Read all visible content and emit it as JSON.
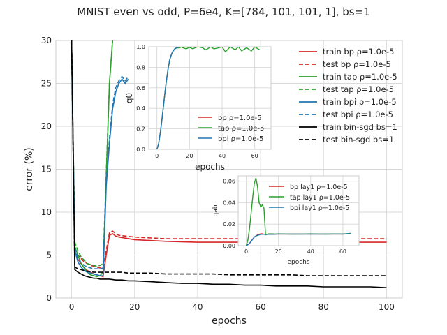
{
  "chart_data": [
    {
      "type": "line",
      "title": "MNIST even vs odd, P=6e4, K=[784, 101, 101, 1], bs=1",
      "xlabel": "epochs",
      "ylabel": "error (%)",
      "xlim": [
        -5,
        105
      ],
      "ylim": [
        0,
        30
      ],
      "xticks": [
        0,
        20,
        40,
        60,
        80,
        100
      ],
      "yticks": [
        0,
        5,
        10,
        15,
        20,
        25,
        30
      ],
      "grid": true,
      "legend_position": "top-right",
      "series": [
        {
          "name": "train bp ρ=1.0e-5",
          "color": "#d62728",
          "dash": false,
          "x": [
            0,
            1,
            2,
            3,
            4,
            5,
            6,
            7,
            8,
            9,
            10,
            11,
            12,
            13,
            14,
            15,
            20,
            30,
            40,
            50,
            60,
            70,
            80,
            90,
            100
          ],
          "y": [
            30,
            5.5,
            4.5,
            4,
            3.5,
            3.2,
            3,
            2.8,
            2.7,
            2.6,
            2.5,
            5,
            7.3,
            7.5,
            7.2,
            7.1,
            6.8,
            6.6,
            6.5,
            6.5,
            6.5,
            6.5,
            6.5,
            6.5,
            6.5
          ]
        },
        {
          "name": "test bp ρ=1.0e-5",
          "color": "#d62728",
          "dash": true,
          "x": [
            0,
            1,
            2,
            3,
            4,
            5,
            6,
            7,
            8,
            9,
            10,
            11,
            12,
            13,
            14,
            15,
            20,
            30,
            40,
            50,
            60,
            70,
            80,
            90,
            100
          ],
          "y": [
            30,
            5.8,
            5,
            4.6,
            4.2,
            4,
            3.8,
            3.7,
            3.6,
            3.5,
            3.5,
            5.5,
            7.6,
            7.8,
            7.5,
            7.3,
            7.1,
            6.9,
            6.9,
            6.9,
            6.9,
            6.9,
            6.9,
            6.9,
            6.9
          ]
        },
        {
          "name": "train tap ρ=1.0e-5",
          "color": "#2ca02c",
          "dash": false,
          "x": [
            0,
            1,
            2,
            3,
            4,
            5,
            6,
            7,
            8,
            9,
            10,
            11,
            12,
            13
          ],
          "y": [
            30,
            6,
            5,
            4,
            3.5,
            3,
            2.7,
            2.6,
            2.5,
            2.6,
            3,
            14,
            25,
            30
          ]
        },
        {
          "name": "test tap ρ=1.0e-5",
          "color": "#2ca02c",
          "dash": true,
          "x": [
            0,
            1,
            2,
            3,
            4,
            5,
            6,
            7,
            8,
            9,
            10,
            11,
            12,
            13
          ],
          "y": [
            30,
            6.5,
            5.5,
            4.8,
            4.4,
            4,
            3.9,
            3.8,
            3.7,
            3.8,
            4,
            14.5,
            25,
            30
          ]
        },
        {
          "name": "train bpi ρ=1.0e-5",
          "color": "#1f77b4",
          "dash": false,
          "x": [
            0,
            1,
            2,
            3,
            4,
            5,
            6,
            7,
            8,
            9,
            10,
            11,
            12,
            13,
            14,
            15,
            16,
            17,
            18
          ],
          "y": [
            30,
            5.5,
            4.2,
            3.6,
            3.2,
            3,
            2.9,
            2.8,
            2.7,
            2.6,
            2.6,
            13,
            18,
            22,
            24,
            25,
            25.5,
            25,
            25.5
          ]
        },
        {
          "name": "test bpi ρ=1.0e-5",
          "color": "#1f77b4",
          "dash": true,
          "x": [
            0,
            1,
            2,
            3,
            4,
            5,
            6,
            7,
            8,
            9,
            10,
            11,
            12,
            13,
            14,
            15,
            16,
            17,
            18
          ],
          "y": [
            30,
            5.8,
            4.6,
            4.1,
            3.8,
            3.6,
            3.5,
            3.4,
            3.4,
            3.4,
            3.5,
            13.5,
            18.5,
            22.5,
            24.5,
            25.3,
            25.8,
            25.3,
            25.8
          ]
        },
        {
          "name": "train bin-sgd bs=1",
          "color": "#000000",
          "dash": false,
          "x": [
            0,
            1,
            2,
            3,
            4,
            5,
            6,
            7,
            8,
            9,
            10,
            12,
            14,
            16,
            18,
            20,
            25,
            30,
            35,
            40,
            45,
            50,
            55,
            60,
            65,
            70,
            75,
            80,
            85,
            90,
            95,
            100
          ],
          "y": [
            30,
            3.3,
            3,
            2.8,
            2.6,
            2.5,
            2.4,
            2.3,
            2.3,
            2.2,
            2.2,
            2.2,
            2.1,
            2.1,
            2,
            2,
            1.9,
            1.8,
            1.7,
            1.7,
            1.6,
            1.6,
            1.5,
            1.5,
            1.4,
            1.4,
            1.4,
            1.3,
            1.3,
            1.3,
            1.3,
            1.2
          ]
        },
        {
          "name": "test bin-sgd bs=1",
          "color": "#000000",
          "dash": true,
          "x": [
            0,
            1,
            2,
            3,
            4,
            5,
            6,
            7,
            8,
            9,
            10,
            12,
            14,
            16,
            18,
            20,
            25,
            30,
            35,
            40,
            45,
            50,
            55,
            60,
            65,
            70,
            75,
            80,
            85,
            90,
            95,
            100
          ],
          "y": [
            30,
            3.6,
            3.4,
            3.3,
            3.2,
            3.1,
            3.1,
            3,
            3,
            3,
            3,
            3,
            3,
            3,
            2.9,
            2.9,
            2.9,
            2.8,
            2.8,
            2.8,
            2.8,
            2.7,
            2.7,
            2.7,
            2.7,
            2.7,
            2.6,
            2.6,
            2.6,
            2.6,
            2.6,
            2.6
          ]
        }
      ]
    },
    {
      "type": "line",
      "xlabel": "epochs",
      "ylabel": "q0",
      "xlim": [
        -5,
        70
      ],
      "ylim": [
        0,
        1
      ],
      "xticks": [
        0,
        20,
        40,
        60
      ],
      "yticks": [
        0.0,
        0.2,
        0.4,
        0.6,
        0.8,
        1.0
      ],
      "ytick_labels": [
        "0.0",
        "0.2",
        "0.4",
        "0.6",
        "0.8",
        "1.0"
      ],
      "grid": true,
      "legend_position": "lower-right",
      "series": [
        {
          "name": "bp ρ=1.0e-5",
          "color": "#d62728",
          "x": [
            0,
            1,
            2,
            3,
            4,
            5,
            6,
            7,
            8,
            9,
            10,
            11,
            12,
            13,
            14,
            15,
            16,
            18,
            20,
            25,
            30,
            35,
            40,
            45,
            50,
            55,
            60,
            63
          ],
          "y": [
            0,
            0.05,
            0.15,
            0.28,
            0.42,
            0.56,
            0.69,
            0.8,
            0.88,
            0.93,
            0.96,
            0.98,
            0.99,
            0.995,
            1,
            1,
            1,
            1,
            1,
            1,
            1,
            1,
            1,
            1,
            1,
            1,
            1,
            1
          ]
        },
        {
          "name": "tap ρ=1.0e-5",
          "color": "#2ca02c",
          "x": [
            0,
            1,
            2,
            3,
            4,
            5,
            6,
            7,
            8,
            9,
            10,
            11,
            12,
            13,
            14,
            15,
            16,
            18,
            20,
            22,
            25,
            28,
            30,
            33,
            35,
            38,
            40,
            42,
            45,
            48,
            50,
            52,
            55,
            58,
            60,
            63
          ],
          "y": [
            0,
            0.05,
            0.15,
            0.28,
            0.42,
            0.56,
            0.69,
            0.8,
            0.88,
            0.93,
            0.96,
            0.98,
            0.99,
            0.99,
            0.99,
            1,
            0.99,
            0.98,
            0.995,
            0.98,
            1,
            0.99,
            0.97,
            1,
            0.98,
            0.99,
            1,
            0.95,
            1,
            0.97,
            1,
            0.96,
            0.99,
            0.96,
            1,
            0.97
          ]
        },
        {
          "name": "bpi ρ=1.0e-5",
          "color": "#1f77b4",
          "x": [
            0,
            1,
            2,
            3,
            4,
            5,
            6,
            7,
            8,
            9,
            10,
            11,
            12,
            13,
            14,
            15,
            16,
            18,
            20
          ],
          "y": [
            0,
            0.05,
            0.15,
            0.28,
            0.42,
            0.56,
            0.69,
            0.8,
            0.88,
            0.93,
            0.96,
            0.98,
            0.99,
            0.995,
            1,
            1,
            1,
            1,
            1
          ]
        }
      ]
    },
    {
      "type": "line",
      "xlabel": "epochs",
      "ylabel": "qab",
      "xlim": [
        -5,
        70
      ],
      "ylim": [
        0,
        0.065
      ],
      "xticks": [
        0,
        20,
        40,
        60
      ],
      "yticks": [
        0.0,
        0.02,
        0.04,
        0.06
      ],
      "ytick_labels": [
        "0.00",
        "0.02",
        "0.04",
        "0.06"
      ],
      "grid": true,
      "legend_position": "top-right",
      "series": [
        {
          "name": "bp lay1 ρ=1.0e-5",
          "color": "#d62728",
          "x": [
            0,
            1,
            2,
            3,
            4,
            5,
            6,
            7,
            8,
            9,
            10,
            11,
            12,
            15,
            20,
            30,
            40,
            50,
            60,
            65
          ],
          "y": [
            0,
            0.001,
            0.002,
            0.004,
            0.006,
            0.008,
            0.009,
            0.01,
            0.0105,
            0.011,
            0.011,
            0.0105,
            0.0105,
            0.0105,
            0.0108,
            0.0108,
            0.0108,
            0.0108,
            0.0108,
            0.011
          ]
        },
        {
          "name": "tap lay1 ρ=1.0e-5",
          "color": "#2ca02c",
          "x": [
            0,
            1,
            2,
            3,
            4,
            5,
            6,
            7,
            8,
            9,
            10,
            11,
            12,
            14,
            16,
            18,
            20,
            25,
            30,
            35,
            40,
            45,
            50,
            55,
            60,
            65
          ],
          "y": [
            0,
            0.005,
            0.015,
            0.03,
            0.045,
            0.058,
            0.063,
            0.055,
            0.04,
            0.036,
            0.038,
            0.035,
            0.01,
            0.011,
            0.011,
            0.0108,
            0.011,
            0.0108,
            0.0107,
            0.0108,
            0.011,
            0.0108,
            0.0107,
            0.0109,
            0.0108,
            0.0115
          ]
        },
        {
          "name": "bpi lay1 ρ=1.0e-5",
          "color": "#1f77b4",
          "x": [
            0,
            1,
            2,
            3,
            4,
            5,
            6,
            7,
            8,
            9,
            10,
            11,
            12,
            15,
            20,
            30,
            40,
            50,
            60,
            65
          ],
          "y": [
            0,
            0.001,
            0.002,
            0.004,
            0.006,
            0.008,
            0.009,
            0.0095,
            0.01,
            0.0105,
            0.0105,
            0.0105,
            0.0105,
            0.0105,
            0.0108,
            0.0108,
            0.0107,
            0.0108,
            0.0108,
            0.0112
          ]
        }
      ]
    }
  ]
}
